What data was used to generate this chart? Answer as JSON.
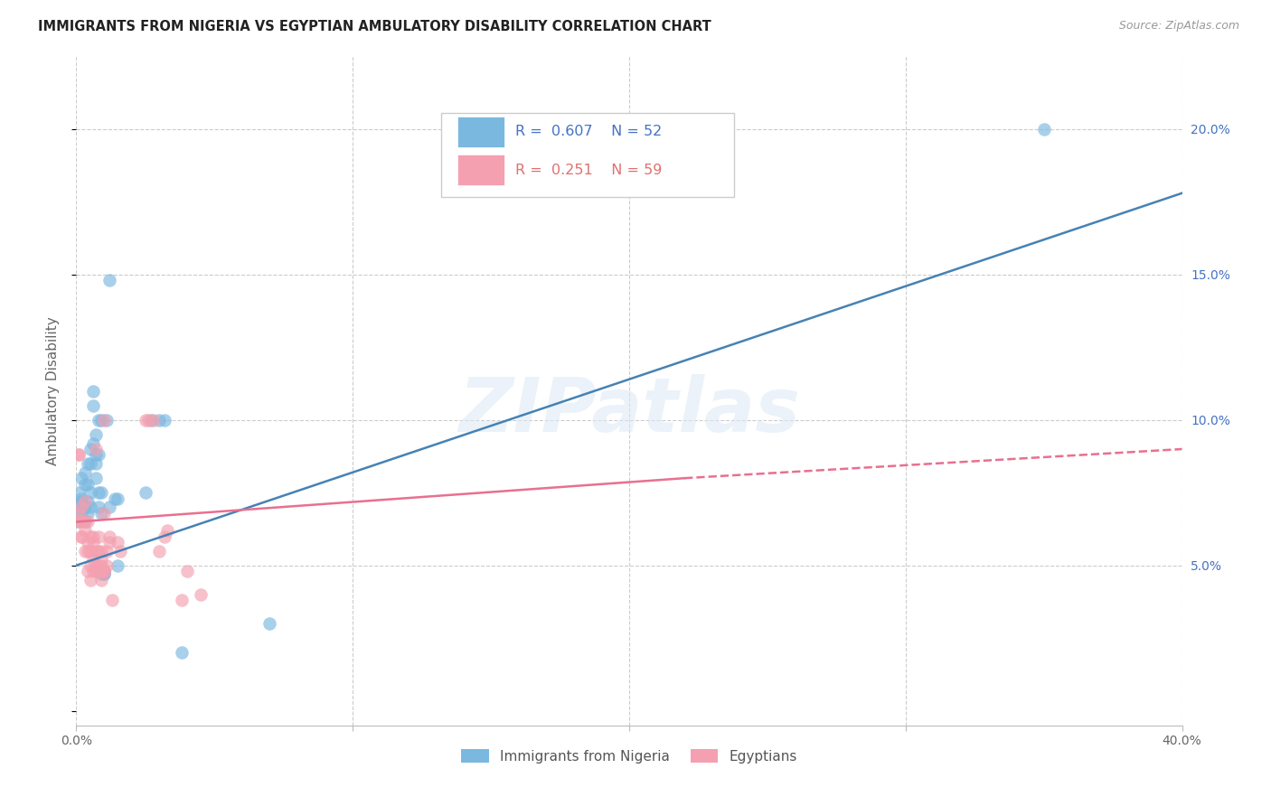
{
  "title": "IMMIGRANTS FROM NIGERIA VS EGYPTIAN AMBULATORY DISABILITY CORRELATION CHART",
  "source": "Source: ZipAtlas.com",
  "ylabel": "Ambulatory Disability",
  "xlim": [
    0.0,
    0.4
  ],
  "ylim": [
    -0.005,
    0.225
  ],
  "yticks_right": [
    0.05,
    0.1,
    0.15,
    0.2
  ],
  "ytick_labels_right": [
    "5.0%",
    "10.0%",
    "15.0%",
    "20.0%"
  ],
  "xtick_positions": [
    0.0,
    0.1,
    0.2,
    0.3,
    0.4
  ],
  "xtick_labels": [
    "0.0%",
    "",
    "",
    "",
    "40.0%"
  ],
  "watermark": "ZIPatlas",
  "nigeria_R": 0.607,
  "nigeria_N": 52,
  "egypt_R": 0.251,
  "egypt_N": 59,
  "nigeria_color": "#7ab8e0",
  "egypt_color": "#f4a0b0",
  "nigeria_line_color": "#4682b4",
  "egypt_line_color": "#e87090",
  "nigeria_scatter": [
    [
      0.001,
      0.071
    ],
    [
      0.001,
      0.068
    ],
    [
      0.001,
      0.075
    ],
    [
      0.001,
      0.065
    ],
    [
      0.002,
      0.073
    ],
    [
      0.002,
      0.07
    ],
    [
      0.002,
      0.068
    ],
    [
      0.002,
      0.08
    ],
    [
      0.002,
      0.072
    ],
    [
      0.003,
      0.078
    ],
    [
      0.003,
      0.065
    ],
    [
      0.003,
      0.082
    ],
    [
      0.003,
      0.07
    ],
    [
      0.004,
      0.085
    ],
    [
      0.004,
      0.072
    ],
    [
      0.004,
      0.078
    ],
    [
      0.004,
      0.068
    ],
    [
      0.005,
      0.09
    ],
    [
      0.005,
      0.07
    ],
    [
      0.005,
      0.085
    ],
    [
      0.005,
      0.075
    ],
    [
      0.006,
      0.092
    ],
    [
      0.006,
      0.11
    ],
    [
      0.006,
      0.105
    ],
    [
      0.007,
      0.088
    ],
    [
      0.007,
      0.08
    ],
    [
      0.007,
      0.095
    ],
    [
      0.007,
      0.085
    ],
    [
      0.008,
      0.088
    ],
    [
      0.008,
      0.075
    ],
    [
      0.008,
      0.1
    ],
    [
      0.008,
      0.07
    ],
    [
      0.009,
      0.068
    ],
    [
      0.009,
      0.075
    ],
    [
      0.009,
      0.047
    ],
    [
      0.009,
      0.1
    ],
    [
      0.01,
      0.047
    ],
    [
      0.01,
      0.048
    ],
    [
      0.01,
      0.047
    ],
    [
      0.011,
      0.1
    ],
    [
      0.012,
      0.148
    ],
    [
      0.012,
      0.07
    ],
    [
      0.014,
      0.073
    ],
    [
      0.015,
      0.073
    ],
    [
      0.015,
      0.05
    ],
    [
      0.025,
      0.075
    ],
    [
      0.027,
      0.1
    ],
    [
      0.03,
      0.1
    ],
    [
      0.032,
      0.1
    ],
    [
      0.038,
      0.02
    ],
    [
      0.07,
      0.03
    ],
    [
      0.35,
      0.2
    ]
  ],
  "egypt_scatter": [
    [
      0.001,
      0.088
    ],
    [
      0.001,
      0.088
    ],
    [
      0.001,
      0.065
    ],
    [
      0.001,
      0.068
    ],
    [
      0.002,
      0.06
    ],
    [
      0.002,
      0.065
    ],
    [
      0.002,
      0.06
    ],
    [
      0.002,
      0.07
    ],
    [
      0.003,
      0.065
    ],
    [
      0.003,
      0.072
    ],
    [
      0.003,
      0.055
    ],
    [
      0.003,
      0.062
    ],
    [
      0.004,
      0.058
    ],
    [
      0.004,
      0.065
    ],
    [
      0.004,
      0.048
    ],
    [
      0.004,
      0.055
    ],
    [
      0.005,
      0.045
    ],
    [
      0.005,
      0.055
    ],
    [
      0.005,
      0.05
    ],
    [
      0.005,
      0.06
    ],
    [
      0.006,
      0.048
    ],
    [
      0.006,
      0.058
    ],
    [
      0.006,
      0.052
    ],
    [
      0.006,
      0.06
    ],
    [
      0.007,
      0.048
    ],
    [
      0.007,
      0.055
    ],
    [
      0.007,
      0.05
    ],
    [
      0.007,
      0.09
    ],
    [
      0.008,
      0.048
    ],
    [
      0.008,
      0.055
    ],
    [
      0.008,
      0.05
    ],
    [
      0.008,
      0.06
    ],
    [
      0.009,
      0.048
    ],
    [
      0.009,
      0.052
    ],
    [
      0.009,
      0.055
    ],
    [
      0.009,
      0.048
    ],
    [
      0.009,
      0.045
    ],
    [
      0.009,
      0.05
    ],
    [
      0.01,
      0.048
    ],
    [
      0.01,
      0.1
    ],
    [
      0.01,
      0.068
    ],
    [
      0.01,
      0.048
    ],
    [
      0.01,
      0.048
    ],
    [
      0.011,
      0.05
    ],
    [
      0.011,
      0.055
    ],
    [
      0.012,
      0.058
    ],
    [
      0.012,
      0.06
    ],
    [
      0.013,
      0.038
    ],
    [
      0.015,
      0.058
    ],
    [
      0.016,
      0.055
    ],
    [
      0.025,
      0.1
    ],
    [
      0.026,
      0.1
    ],
    [
      0.028,
      0.1
    ],
    [
      0.03,
      0.055
    ],
    [
      0.032,
      0.06
    ],
    [
      0.033,
      0.062
    ],
    [
      0.038,
      0.038
    ],
    [
      0.04,
      0.048
    ],
    [
      0.045,
      0.04
    ]
  ],
  "nigeria_line": [
    [
      0.0,
      0.05
    ],
    [
      0.4,
      0.178
    ]
  ],
  "egypt_line_solid": [
    [
      0.0,
      0.065
    ],
    [
      0.22,
      0.08
    ]
  ],
  "egypt_line_dashed": [
    [
      0.22,
      0.08
    ],
    [
      0.4,
      0.09
    ]
  ],
  "background_color": "#ffffff",
  "grid_color": "#cccccc"
}
